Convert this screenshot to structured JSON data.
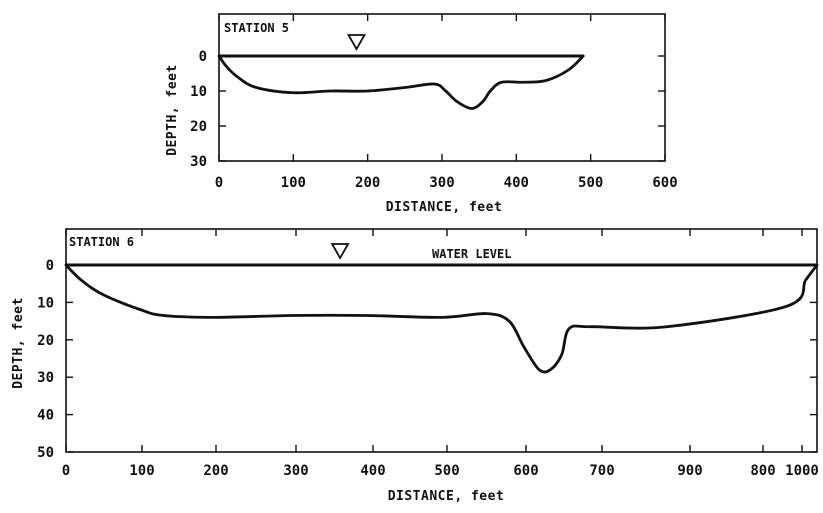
{
  "chart_data": [
    {
      "type": "line",
      "station_label": "STATION 5",
      "xlabel": "DISTANCE, feet",
      "ylabel": "DEPTH, feet",
      "xlim": [
        0,
        600
      ],
      "ylim": [
        0,
        30
      ],
      "y_inverted": true,
      "x_ticks": [
        "0",
        "100",
        "200",
        "300",
        "400",
        "500",
        "600"
      ],
      "y_ticks": [
        "0",
        "10",
        "20",
        "30"
      ],
      "water_level_marker_x": 185,
      "series": [
        {
          "x": [
            0,
            10,
            25,
            50,
            100,
            150,
            200,
            250,
            290,
            305,
            320,
            340,
            355,
            365,
            380,
            410,
            440,
            470,
            490
          ],
          "values": [
            0,
            3,
            6,
            9,
            10.5,
            10,
            10,
            9,
            8,
            10,
            13,
            15,
            13,
            10,
            7.5,
            7.5,
            7,
            4,
            0
          ]
        }
      ]
    },
    {
      "type": "line",
      "station_label": "STATION 6",
      "annotation": "WATER LEVEL",
      "xlabel": "DISTANCE, feet",
      "ylabel": "DEPTH, feet",
      "xlim": [
        0,
        1000
      ],
      "ylim": [
        0,
        50
      ],
      "y_inverted": true,
      "x_ticks": [
        "0",
        "100",
        "200",
        "300",
        "400",
        "500",
        "600",
        "700",
        "900",
        "800",
        "1000"
      ],
      "y_ticks": [
        "0",
        "10",
        "20",
        "30",
        "40",
        "50"
      ],
      "water_level_marker_x": 365,
      "series": [
        {
          "x": [
            0,
            20,
            50,
            100,
            130,
            200,
            300,
            400,
            500,
            560,
            590,
            610,
            630,
            645,
            660,
            670,
            700,
            800,
            960,
            985,
            1000
          ],
          "values": [
            0,
            4,
            8,
            12,
            13.5,
            14,
            13.5,
            13.5,
            14,
            13,
            15,
            22,
            28,
            28,
            24,
            17,
            16.5,
            16.5,
            11,
            4,
            0
          ]
        }
      ]
    }
  ]
}
